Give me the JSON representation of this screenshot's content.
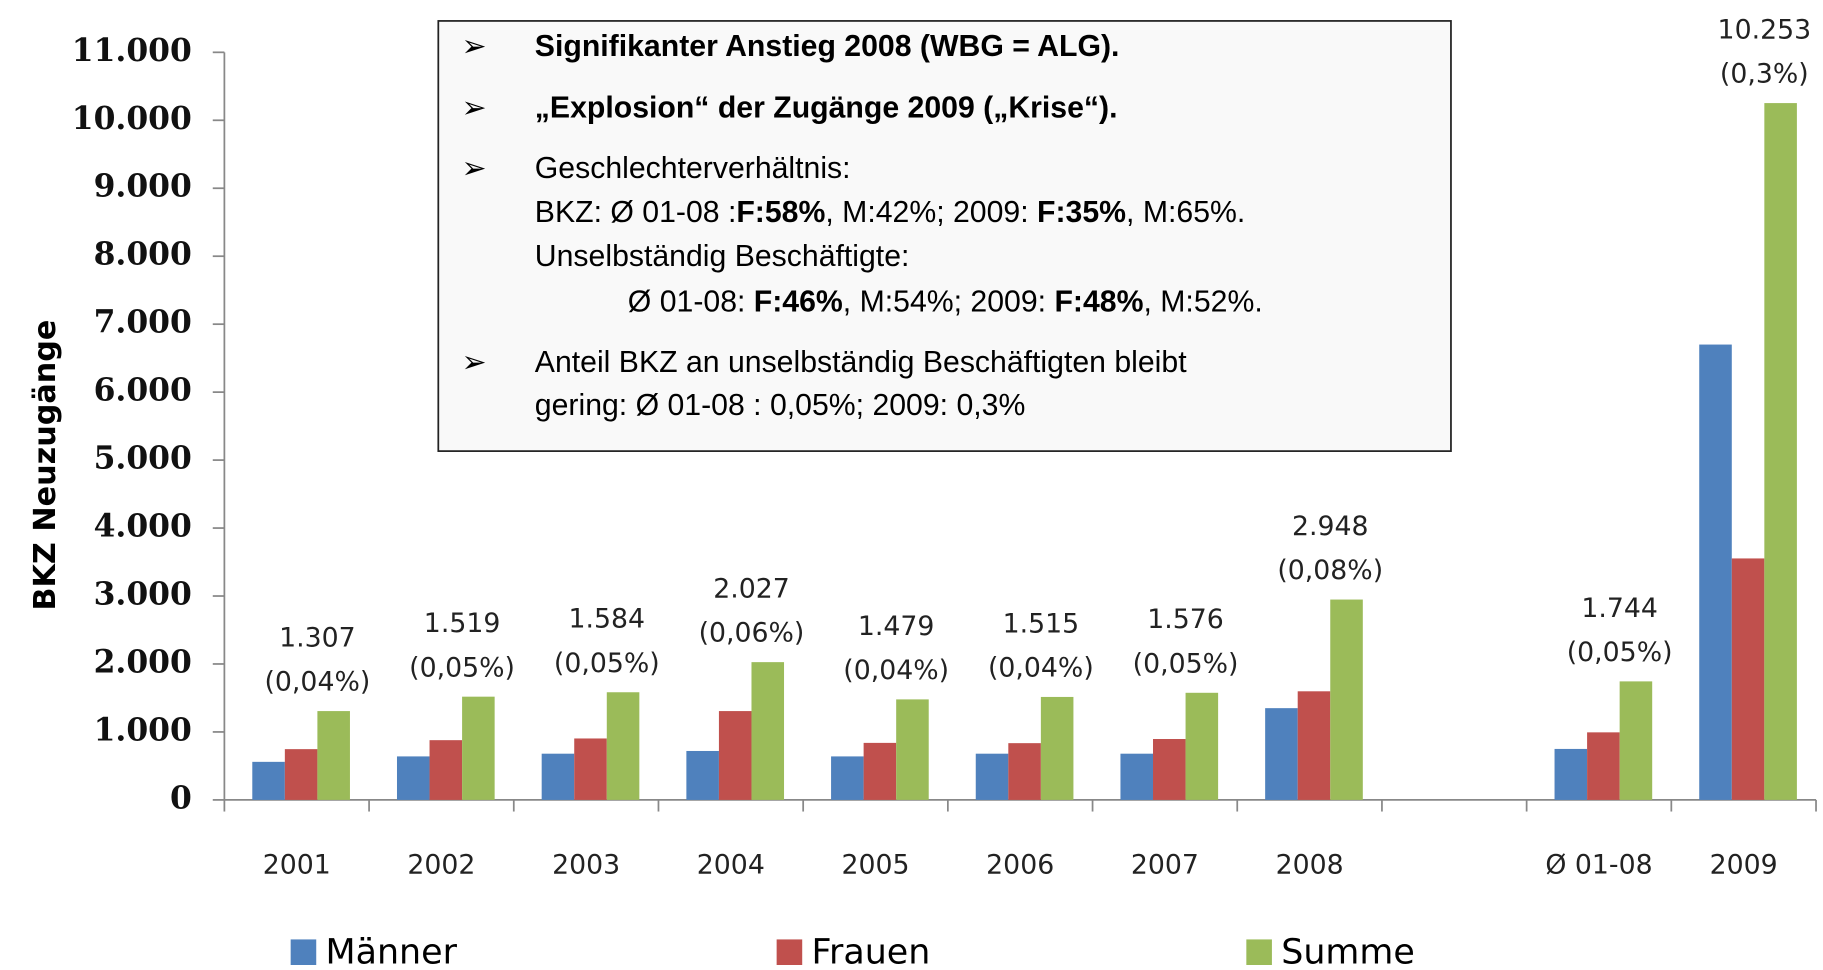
{
  "chart_data": {
    "type": "bar",
    "y_label": "BKZ Neuzugänge",
    "categories": [
      "2001",
      "2002",
      "2003",
      "2004",
      "2005",
      "2006",
      "2007",
      "2008",
      null,
      "Ø 01-08",
      "2009"
    ],
    "series": [
      {
        "name": "Männer",
        "color": "#4f81bd",
        "values": [
          560,
          640,
          680,
          720,
          640,
          680,
          680,
          1350,
          null,
          750,
          6700
        ]
      },
      {
        "name": "Frauen",
        "color": "#c0504d",
        "values": [
          747,
          879,
          904,
          1307,
          839,
          835,
          896,
          1598,
          null,
          994,
          3553
        ]
      },
      {
        "name": "Summe",
        "color": "#9bbb59",
        "values": [
          1307,
          1519,
          1584,
          2027,
          1479,
          1515,
          1576,
          2948,
          null,
          1744,
          10253
        ],
        "value_labels": [
          "1.307",
          "1.519",
          "1.584",
          "2.027",
          "1.479",
          "1.515",
          "1.576",
          "2.948",
          null,
          "1.744",
          "10.253"
        ],
        "share_labels": [
          "(0,04%)",
          "(0,05%)",
          "(0,05%)",
          "(0,06%)",
          "(0,04%)",
          "(0,04%)",
          "(0,05%)",
          "(0,08%)",
          null,
          "(0,05%)",
          "(0,3%)"
        ]
      }
    ],
    "ylim": [
      0,
      11000
    ],
    "yticks": [
      0,
      {
        "value": 1000,
        "label": "1.000"
      },
      {
        "value": 2000,
        "label": "2.000"
      },
      {
        "value": 3000,
        "label": "3.000"
      },
      {
        "value": 4000,
        "label": "4.000"
      },
      {
        "value": 5000,
        "label": "5.000"
      },
      {
        "value": 6000,
        "label": "6.000"
      },
      {
        "value": 7000,
        "label": "7.000"
      },
      {
        "value": 8000,
        "label": "8.000"
      },
      {
        "value": 9000,
        "label": "9.000"
      },
      {
        "value": 10000,
        "label": "10.000"
      },
      {
        "value": 11000,
        "label": "11.000"
      }
    ],
    "legend": "bottom",
    "annotation_box": [
      [
        [
          {
            "text": "Signifikanter Anstieg 2008 (WBG = ALG).",
            "bold": true
          }
        ]
      ],
      [
        [
          {
            "text": "„Explosion“ der Zugänge 2009 („Krise“).",
            "bold": true
          }
        ]
      ],
      [
        [
          {
            "text": "Geschlechterverhältnis:"
          }
        ],
        [
          {
            "text": "BKZ: Ø 01-08 :"
          },
          {
            "text": "F:58%",
            "bold": true
          },
          {
            "text": ", M:42%; 2009: "
          },
          {
            "text": "F:35%",
            "bold": true
          },
          {
            "text": ", M:65%."
          }
        ],
        [
          {
            "text": "Unselbständig Beschäftigte:"
          }
        ],
        [
          {
            "text": "Ø 01-08: "
          },
          {
            "text": "F:46%",
            "bold": true
          },
          {
            "text": ", M:54%; 2009: "
          },
          {
            "text": "F:48%",
            "bold": true
          },
          {
            "text": ", M:52%."
          }
        ]
      ],
      [
        [
          {
            "text": "Anteil BKZ an unselbständig Beschäftigten bleibt"
          }
        ],
        [
          {
            "text": "gering: Ø 01-08 : 0,05%; 2009: 0,3%"
          }
        ]
      ]
    ]
  }
}
